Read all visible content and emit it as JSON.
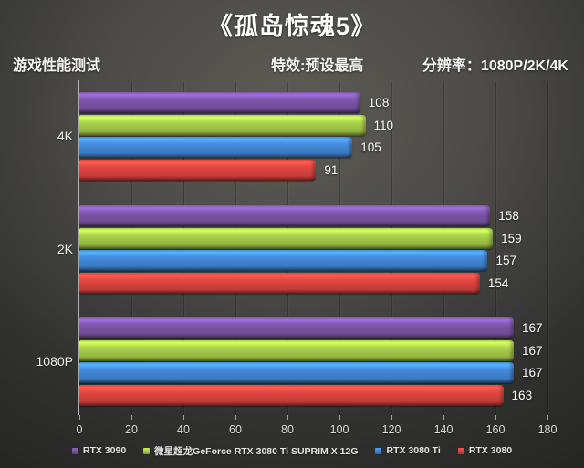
{
  "title": "《孤岛惊魂5》",
  "header": {
    "left": "游戏性能测试",
    "center": "特效:预设最高",
    "right": "分辨率：1080P/2K/4K"
  },
  "chart_data": {
    "type": "bar",
    "orientation": "horizontal",
    "title": "《孤岛惊魂5》",
    "categories": [
      "4K",
      "2K",
      "1080P"
    ],
    "series": [
      {
        "name": "RTX 3090",
        "color": "#75519f",
        "values": [
          108,
          158,
          167
        ]
      },
      {
        "name": "微星超龙GeForce RTX 3080 Ti SUPRIM X 12G",
        "color": "#9fc446",
        "values": [
          110,
          159,
          167
        ]
      },
      {
        "name": "RTX 3080 Ti",
        "color": "#3f82cd",
        "values": [
          105,
          157,
          167
        ]
      },
      {
        "name": "RTX 3080",
        "color": "#d2423d",
        "values": [
          91,
          154,
          163
        ]
      }
    ],
    "xlim": [
      0,
      180
    ],
    "x_ticks": [
      0,
      20,
      40,
      60,
      80,
      100,
      120,
      140,
      160,
      180
    ],
    "grid": true,
    "legend_position": "bottom",
    "background_color": "#4c4b48",
    "axis_color": "#b4b4b4",
    "text_color": "#ffffff"
  }
}
